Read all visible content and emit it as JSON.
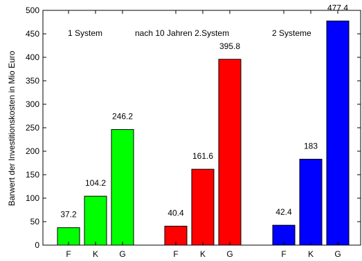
{
  "chart_data": {
    "type": "bar",
    "ylabel": "Barwert der Investitionskosten in Mio Euro",
    "ylim": [
      0,
      500
    ],
    "yticks": [
      0,
      50,
      100,
      150,
      200,
      250,
      300,
      350,
      400,
      450,
      500
    ],
    "grid": false,
    "groups": [
      {
        "label": "1 System",
        "color": "#00ff00",
        "bars": [
          {
            "category": "F",
            "value": 37.2,
            "label": "37.2"
          },
          {
            "category": "K",
            "value": 104.2,
            "label": "104.2"
          },
          {
            "category": "G",
            "value": 246.2,
            "label": "246.2"
          }
        ]
      },
      {
        "label": "nach 10 Jahren 2.System",
        "color": "#ff0000",
        "bars": [
          {
            "category": "F",
            "value": 40.4,
            "label": "40.4"
          },
          {
            "category": "K",
            "value": 161.6,
            "label": "161.6"
          },
          {
            "category": "G",
            "value": 395.8,
            "label": "395.8"
          }
        ]
      },
      {
        "label": "2 Systeme",
        "color": "#0000ff",
        "bars": [
          {
            "category": "F",
            "value": 42.4,
            "label": "42.4"
          },
          {
            "category": "K",
            "value": 183,
            "label": "183"
          },
          {
            "category": "G",
            "value": 477.4,
            "label": "477.4"
          }
        ]
      }
    ]
  }
}
